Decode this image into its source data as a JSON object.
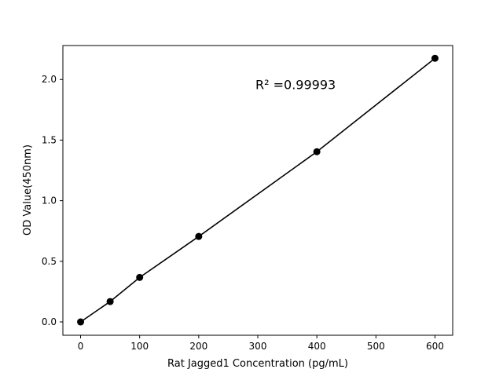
{
  "chart_data": {
    "type": "line",
    "title": "",
    "xlabel": "Rat Jagged1 Concentration (pg/mL)",
    "ylabel": "OD Value(450nm)",
    "x": [
      0,
      50,
      100,
      200,
      400,
      600
    ],
    "series": [
      {
        "values": [
          0.0,
          0.168,
          0.367,
          0.705,
          1.404,
          2.175
        ],
        "color": "#000000",
        "marker": "circle"
      }
    ],
    "xlim": [
      -30,
      630
    ],
    "ylim": [
      -0.11,
      2.28
    ],
    "xticks": [
      0,
      100,
      200,
      300,
      400,
      500,
      600
    ],
    "xtick_labels": [
      "0",
      "100",
      "200",
      "300",
      "400",
      "500",
      "600"
    ],
    "yticks": [
      0.0,
      0.5,
      1.0,
      1.5,
      2.0
    ],
    "ytick_labels": [
      "0.0",
      "0.5",
      "1.0",
      "1.5",
      "2.0"
    ],
    "grid": false,
    "annotations": [
      {
        "text": "R² =0.99993",
        "x": 300,
        "y": 1.96
      }
    ]
  }
}
